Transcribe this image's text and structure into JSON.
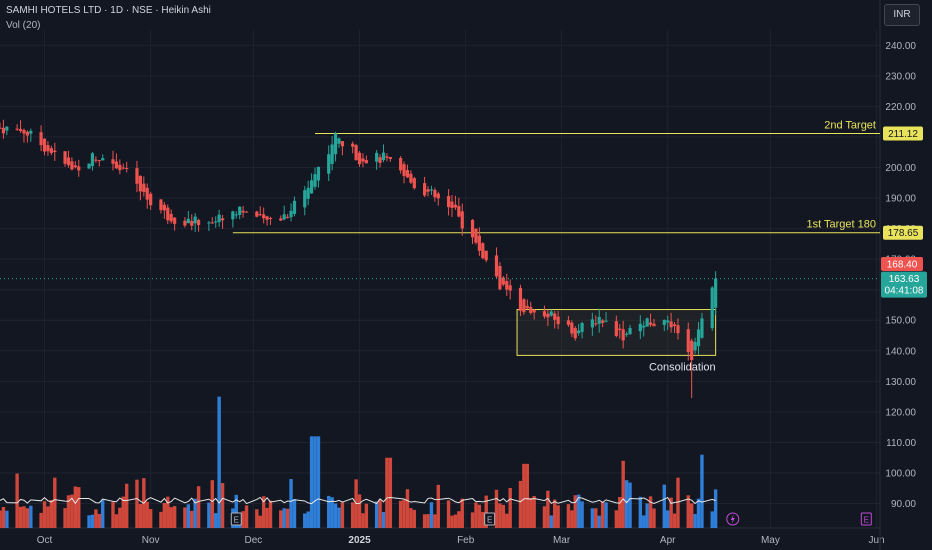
{
  "header": {
    "title": "SAMHI HOTELS LTD · 1D · NSE · Heikin Ashi",
    "volume_label": "Vol (20)",
    "currency": "INR"
  },
  "colors": {
    "up": "#26a69a",
    "down": "#ef5350",
    "level": "#e8e35a",
    "vol_up": "#2f7ed8",
    "vol_down": "#d0473c",
    "bg": "#131722",
    "grid": "#1f2330",
    "text": "#b2b5be"
  },
  "chart_data": {
    "type": "candlestick",
    "title": "SAMHI HOTELS LTD · 1D · NSE · Heikin Ashi",
    "y_ticks": [
      90,
      100,
      110,
      120,
      130,
      140,
      150,
      160,
      170,
      180,
      190,
      200,
      210,
      220,
      230,
      240
    ],
    "ylim": [
      82,
      245
    ],
    "x_labels": [
      {
        "label": "Oct",
        "date": "2024-10-01"
      },
      {
        "label": "Nov",
        "date": "2024-11-01"
      },
      {
        "label": "Dec",
        "date": "2024-12-01"
      },
      {
        "label": "2025",
        "date": "2025-01-01"
      },
      {
        "label": "Feb",
        "date": "2025-02-01"
      },
      {
        "label": "Mar",
        "date": "2025-03-01"
      },
      {
        "label": "Apr",
        "date": "2025-04-01"
      },
      {
        "label": "May",
        "date": "2025-05-01"
      },
      {
        "label": "Jun",
        "date": "2025-06-01"
      }
    ],
    "x_range": [
      "2024-09-18",
      "2025-06-02"
    ],
    "price_path": [
      [
        "2024-09-18",
        213
      ],
      [
        "2024-09-25",
        212
      ],
      [
        "2024-10-02",
        206
      ],
      [
        "2024-10-09",
        199
      ],
      [
        "2024-10-16",
        204
      ],
      [
        "2024-10-23",
        201
      ],
      [
        "2024-10-30",
        191
      ],
      [
        "2024-11-06",
        184
      ],
      [
        "2024-11-13",
        182
      ],
      [
        "2024-11-20",
        183
      ],
      [
        "2024-11-27",
        187
      ],
      [
        "2024-12-04",
        182
      ],
      [
        "2024-12-11",
        185
      ],
      [
        "2024-12-18",
        196
      ],
      [
        "2024-12-25",
        210
      ],
      [
        "2025-01-01",
        203
      ],
      [
        "2025-01-08",
        203
      ],
      [
        "2025-01-15",
        196
      ],
      [
        "2025-01-22",
        191
      ],
      [
        "2025-01-29",
        185
      ],
      [
        "2025-02-05",
        173
      ],
      [
        "2025-02-12",
        160
      ],
      [
        "2025-02-19",
        153
      ],
      [
        "2025-02-26",
        151
      ],
      [
        "2025-03-05",
        146
      ],
      [
        "2025-03-12",
        151
      ],
      [
        "2025-03-19",
        145
      ],
      [
        "2025-03-26",
        150
      ],
      [
        "2025-04-02",
        148
      ],
      [
        "2025-04-05",
        143
      ],
      [
        "2025-04-08",
        136
      ],
      [
        "2025-04-11",
        152
      ],
      [
        "2025-04-15",
        163.63
      ]
    ],
    "volume_levels": [
      [
        "2024-11-22",
        125
      ],
      [
        "2024-12-19",
        112
      ],
      [
        "2025-01-10",
        105
      ],
      [
        "2025-02-18",
        103
      ],
      [
        "2025-03-20",
        104
      ],
      [
        "2025-04-12",
        106
      ]
    ],
    "volume_ma_level": 91,
    "levels": [
      {
        "label": "2nd Target",
        "price": 211.12,
        "price_label": "211.12",
        "start": "2024-12-19"
      },
      {
        "label": "1st Target 180",
        "price": 178.65,
        "price_label": "178.65",
        "start": "2024-11-25"
      }
    ],
    "consolidation": {
      "label": "Consolidation",
      "top": 153.5,
      "bottom": 138.5,
      "start": "2025-02-16",
      "end": "2025-04-15"
    },
    "last_price": {
      "value": 163.63,
      "label": "163.63",
      "countdown": "04:41:08"
    },
    "prev_close": {
      "value": 168.4,
      "label": "168.40"
    },
    "event_markers": [
      {
        "label": "E",
        "date": "2024-11-26"
      },
      {
        "label": "E",
        "date": "2025-02-08"
      },
      {
        "label": "E",
        "date": "2025-05-29"
      }
    ]
  }
}
